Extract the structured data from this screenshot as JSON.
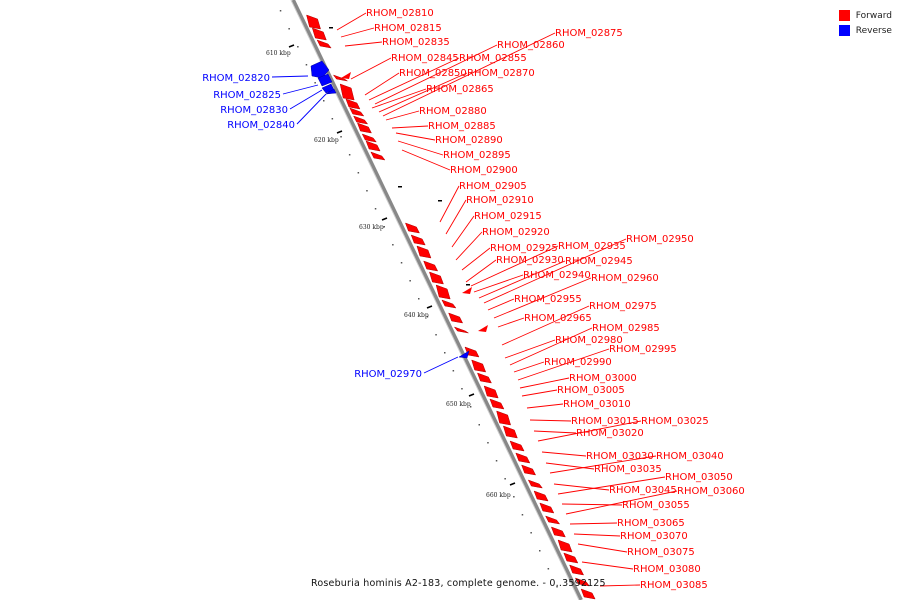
{
  "legend": {
    "forward_label": "Forward",
    "forward_color": "#ff0000",
    "reverse_label": "Reverse",
    "reverse_color": "#0000ff"
  },
  "caption": "Roseburia hominis A2-183, complete genome. - 0..3592125",
  "ticks": [
    "610 kbp",
    "620 kbp",
    "630 kbp",
    "640 kbp",
    "650 kbp",
    "660 kbp"
  ],
  "forward_genes": [
    "RHOM_02810",
    "RHOM_02815",
    "RHOM_02835",
    "RHOM_02845",
    "RHOM_02850",
    "RHOM_02855",
    "RHOM_02860",
    "RHOM_02865",
    "RHOM_02870",
    "RHOM_02875",
    "RHOM_02880",
    "RHOM_02885",
    "RHOM_02890",
    "RHOM_02895",
    "RHOM_02900",
    "RHOM_02905",
    "RHOM_02910",
    "RHOM_02915",
    "RHOM_02920",
    "RHOM_02925",
    "RHOM_02930",
    "RHOM_02935",
    "RHOM_02940",
    "RHOM_02945",
    "RHOM_02950",
    "RHOM_02955",
    "RHOM_02960",
    "RHOM_02965",
    "RHOM_02975",
    "RHOM_02980",
    "RHOM_02985",
    "RHOM_02990",
    "RHOM_02995",
    "RHOM_03000",
    "RHOM_03005",
    "RHOM_03010",
    "RHOM_03015",
    "RHOM_03020",
    "RHOM_03025",
    "RHOM_03030",
    "RHOM_03035",
    "RHOM_03040",
    "RHOM_03045",
    "RHOM_03050",
    "RHOM_03055",
    "RHOM_03060",
    "RHOM_03065",
    "RHOM_03070",
    "RHOM_03075",
    "RHOM_03080",
    "RHOM_03085"
  ],
  "reverse_genes": [
    "RHOM_02820",
    "RHOM_02825",
    "RHOM_02830",
    "RHOM_02840",
    "RHOM_02970"
  ]
}
